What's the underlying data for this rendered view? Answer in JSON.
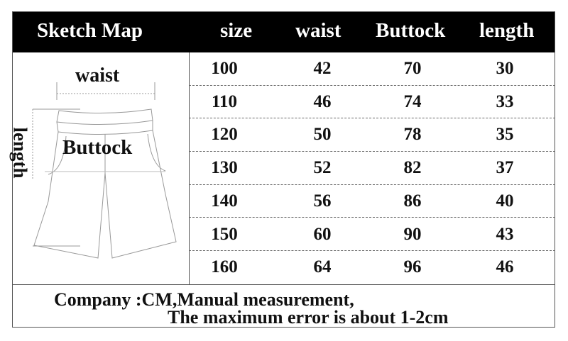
{
  "header": {
    "sketch_map": "Sketch Map",
    "columns": [
      "size",
      "waist",
      "Buttock",
      "length"
    ]
  },
  "sketch": {
    "waist_label": "waist",
    "buttock_label": "Buttock",
    "length_label": "length"
  },
  "rows": [
    [
      "100",
      "42",
      "70",
      "30"
    ],
    [
      "110",
      "46",
      "74",
      "33"
    ],
    [
      "120",
      "50",
      "78",
      "35"
    ],
    [
      "130",
      "52",
      "82",
      "37"
    ],
    [
      "140",
      "56",
      "86",
      "40"
    ],
    [
      "150",
      "60",
      "90",
      "43"
    ],
    [
      "160",
      "64",
      "96",
      "46"
    ]
  ],
  "footer": {
    "line1": "Company :CM,Manual measurement,",
    "line2": "The maximum error is about 1-2cm"
  }
}
